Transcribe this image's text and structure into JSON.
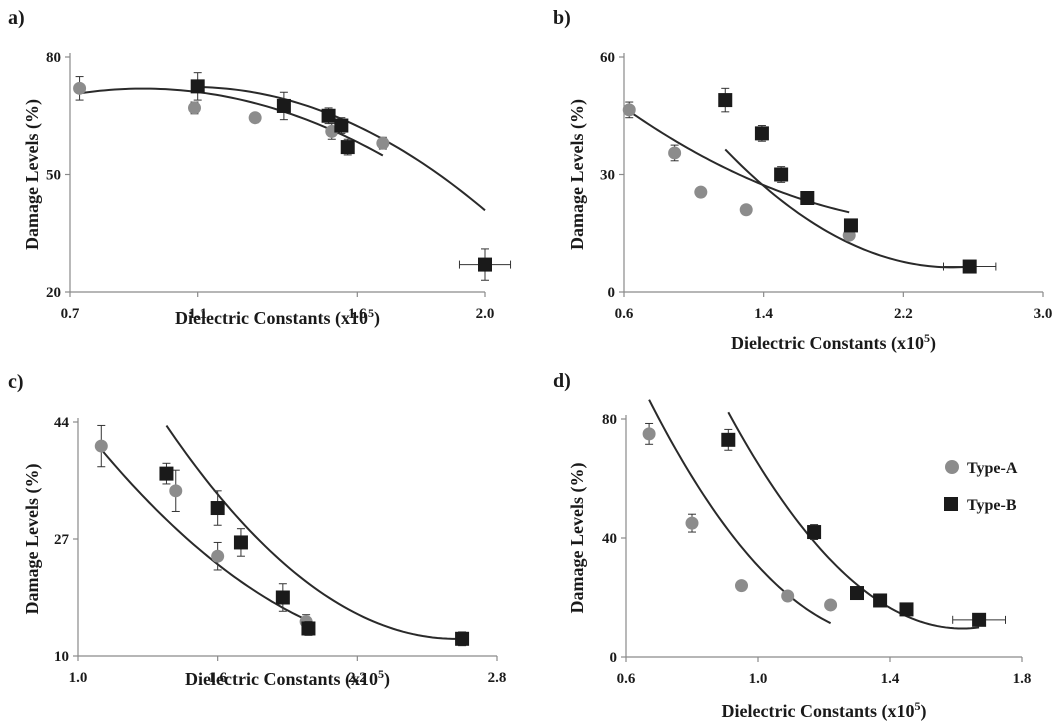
{
  "colors": {
    "type_a": "#8c8c8c",
    "type_b": "#1a1a1a",
    "axis": "#8a8a8a",
    "fit": "#2a2a2a"
  },
  "legend": {
    "panel": "d",
    "placement": "right",
    "items": [
      "Type-A",
      "Type-B"
    ]
  },
  "chart_data": [
    {
      "panel": "a)",
      "type": "scatter",
      "xlabel_main": "Dielectric Constants (x10",
      "xlabel_sup": "5",
      "xlabel_end": ")",
      "ylabel": "Damage Levels (%)",
      "xlim": [
        0.7,
        2.0
      ],
      "ylim": [
        20,
        80
      ],
      "xticks": [
        "0.7",
        "1.1",
        "1.6",
        "2.0"
      ],
      "xtick_values": [
        0.7,
        1.1,
        1.6,
        2.0
      ],
      "yticks": [
        "20",
        "50",
        "80"
      ],
      "ytick_values": [
        20,
        50,
        80
      ],
      "series": [
        {
          "name": "Type-A",
          "marker": "circle",
          "x": [
            0.73,
            1.09,
            1.28,
            1.52,
            1.68
          ],
          "y": [
            72,
            67,
            64.5,
            61,
            58
          ],
          "yerr": [
            3,
            1.5,
            0,
            2,
            1.5
          ],
          "xerr": [
            0,
            0,
            0,
            0,
            0
          ],
          "fit": [
            -30.33,
            56.38,
            45.73
          ]
        },
        {
          "name": "Type-B",
          "marker": "square",
          "x": [
            1.1,
            1.37,
            1.51,
            1.55,
            1.57,
            2.0
          ],
          "y": [
            72.5,
            67.5,
            65,
            62.5,
            57,
            27
          ],
          "yerr": [
            3.5,
            3.5,
            2,
            2,
            2,
            4
          ],
          "xerr": [
            0,
            0,
            0,
            0,
            0,
            0.08
          ],
          "fit": [
            -37.59,
            81.56,
            28.1
          ]
        }
      ]
    },
    {
      "panel": "b)",
      "type": "scatter",
      "xlabel_main": "Dielectric Constants (x10",
      "xlabel_sup": "5",
      "xlabel_end": ")",
      "ylabel": "Damage Levels (%)",
      "xlim": [
        0.6,
        3.0
      ],
      "ylim": [
        0,
        60
      ],
      "xticks": [
        "0.6",
        "1.4",
        "2.2",
        "3.0"
      ],
      "xtick_values": [
        0.6,
        1.4,
        2.2,
        3.0
      ],
      "yticks": [
        "0",
        "30",
        "60"
      ],
      "ytick_values": [
        0,
        30,
        60
      ],
      "series": [
        {
          "name": "Type-A",
          "marker": "circle",
          "x": [
            0.63,
            0.89,
            1.04,
            1.3,
            1.89
          ],
          "y": [
            46.5,
            35.5,
            25.5,
            21,
            14.5
          ],
          "yerr": [
            2,
            2,
            0,
            0,
            0
          ],
          "xerr": [
            0,
            0,
            0,
            0,
            0
          ],
          "fit": [
            8.26,
            -41.3,
            68.9
          ]
        },
        {
          "name": "Type-B",
          "marker": "square",
          "x": [
            1.18,
            1.39,
            1.5,
            1.65,
            1.9,
            2.58
          ],
          "y": [
            49,
            40.5,
            30,
            24,
            17,
            6.5
          ],
          "yerr": [
            3,
            2,
            2,
            1,
            1,
            1
          ],
          "xerr": [
            0,
            0,
            0,
            0,
            0,
            0.15
          ],
          "fit": [
            17.78,
            -88.24,
            115.77
          ]
        }
      ]
    },
    {
      "panel": "c)",
      "type": "scatter",
      "xlabel_main": "Dielectric Constants (x10",
      "xlabel_sup": "5",
      "xlabel_end": ")",
      "ylabel": "Damage Levels (%)",
      "xlim": [
        1.0,
        2.8
      ],
      "ylim": [
        10,
        44
      ],
      "xticks": [
        "1.0",
        "1.6",
        "2.2",
        "2.8"
      ],
      "xtick_values": [
        1.0,
        1.6,
        2.2,
        2.8
      ],
      "yticks": [
        "10",
        "27",
        "44"
      ],
      "ytick_values": [
        10,
        27,
        44
      ],
      "series": [
        {
          "name": "Type-A",
          "marker": "circle",
          "x": [
            1.1,
            1.42,
            1.6,
            1.98
          ],
          "y": [
            40.5,
            34,
            24.5,
            15
          ],
          "yerr": [
            3,
            3,
            2,
            1
          ],
          "xerr": [
            0,
            0,
            0,
            0
          ],
          "fit": [
            13.84,
            -70.74,
            101.08
          ]
        },
        {
          "name": "Type-B",
          "marker": "square",
          "x": [
            1.38,
            1.6,
            1.7,
            1.88,
            1.99,
            2.65
          ],
          "y": [
            36.5,
            31.5,
            26.5,
            18.5,
            14,
            12.5
          ],
          "yerr": [
            1.5,
            2.5,
            2,
            2,
            1,
            1
          ],
          "xerr": [
            0,
            0,
            0,
            0,
            0,
            0
          ],
          "fit": [
            20.0,
            -105.0,
            150.3
          ]
        }
      ]
    },
    {
      "panel": "d)",
      "type": "scatter",
      "xlabel_main": "Dielectric Constants (x10",
      "xlabel_sup": "5",
      "xlabel_end": ")",
      "ylabel": "Damage Levels (%)",
      "xlim": [
        0.6,
        1.8
      ],
      "ylim": [
        0,
        80
      ],
      "xticks": [
        "0.6",
        "1.0",
        "1.4",
        "1.8"
      ],
      "xtick_values": [
        0.6,
        1.0,
        1.4,
        1.8
      ],
      "yticks": [
        "0",
        "40",
        "80"
      ],
      "ytick_values": [
        0,
        40,
        80
      ],
      "series": [
        {
          "name": "Type-A",
          "marker": "circle",
          "x": [
            0.67,
            0.8,
            0.95,
            1.09,
            1.22
          ],
          "y": [
            75,
            45,
            24,
            20.5,
            17.5
          ],
          "yerr": [
            3.5,
            3,
            0,
            0,
            0
          ],
          "xerr": [
            0,
            0,
            0,
            0,
            0
          ],
          "fit": [
            149.0,
            -418.2,
            299.8
          ]
        },
        {
          "name": "Type-B",
          "marker": "square",
          "x": [
            0.91,
            1.17,
            1.3,
            1.37,
            1.45,
            1.67
          ],
          "y": [
            73,
            42,
            21.5,
            19,
            16,
            12.5
          ],
          "yerr": [
            3.5,
            2.5,
            0,
            0,
            0,
            1
          ],
          "xerr": [
            0,
            0,
            0,
            0,
            0,
            0.08
          ],
          "fit": [
            144.5,
            -468.0,
            388.5
          ]
        }
      ]
    }
  ]
}
